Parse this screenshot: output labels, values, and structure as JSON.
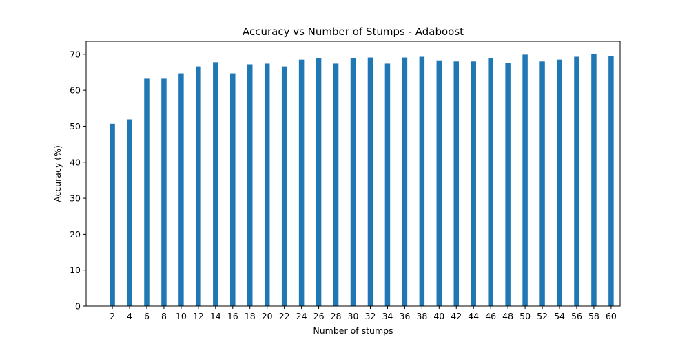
{
  "chart_data": {
    "type": "bar",
    "title": "Accuracy vs Number of Stumps - Adaboost",
    "xlabel": "Number of stumps",
    "ylabel": "Accuracy (%)",
    "categories": [
      "2",
      "4",
      "6",
      "8",
      "10",
      "12",
      "14",
      "16",
      "18",
      "20",
      "22",
      "24",
      "26",
      "28",
      "30",
      "32",
      "34",
      "36",
      "38",
      "40",
      "42",
      "44",
      "46",
      "48",
      "50",
      "52",
      "54",
      "56",
      "58",
      "60"
    ],
    "values": [
      50.7,
      51.9,
      63.2,
      63.2,
      64.7,
      66.6,
      67.8,
      64.7,
      67.2,
      67.4,
      66.6,
      68.5,
      68.9,
      67.4,
      68.9,
      69.1,
      67.4,
      69.1,
      69.3,
      68.3,
      68.0,
      68.0,
      68.9,
      67.6,
      69.9,
      68.0,
      68.5,
      69.3,
      70.1,
      69.5
    ],
    "ylim": [
      0,
      73.6
    ],
    "yticks": [
      0,
      10,
      20,
      30,
      40,
      50,
      60,
      70
    ],
    "x_range": [
      -1.05,
      61.05
    ],
    "bar_width_data": 0.6,
    "grid": false,
    "colors": {
      "bar": "#1f77b4"
    }
  }
}
